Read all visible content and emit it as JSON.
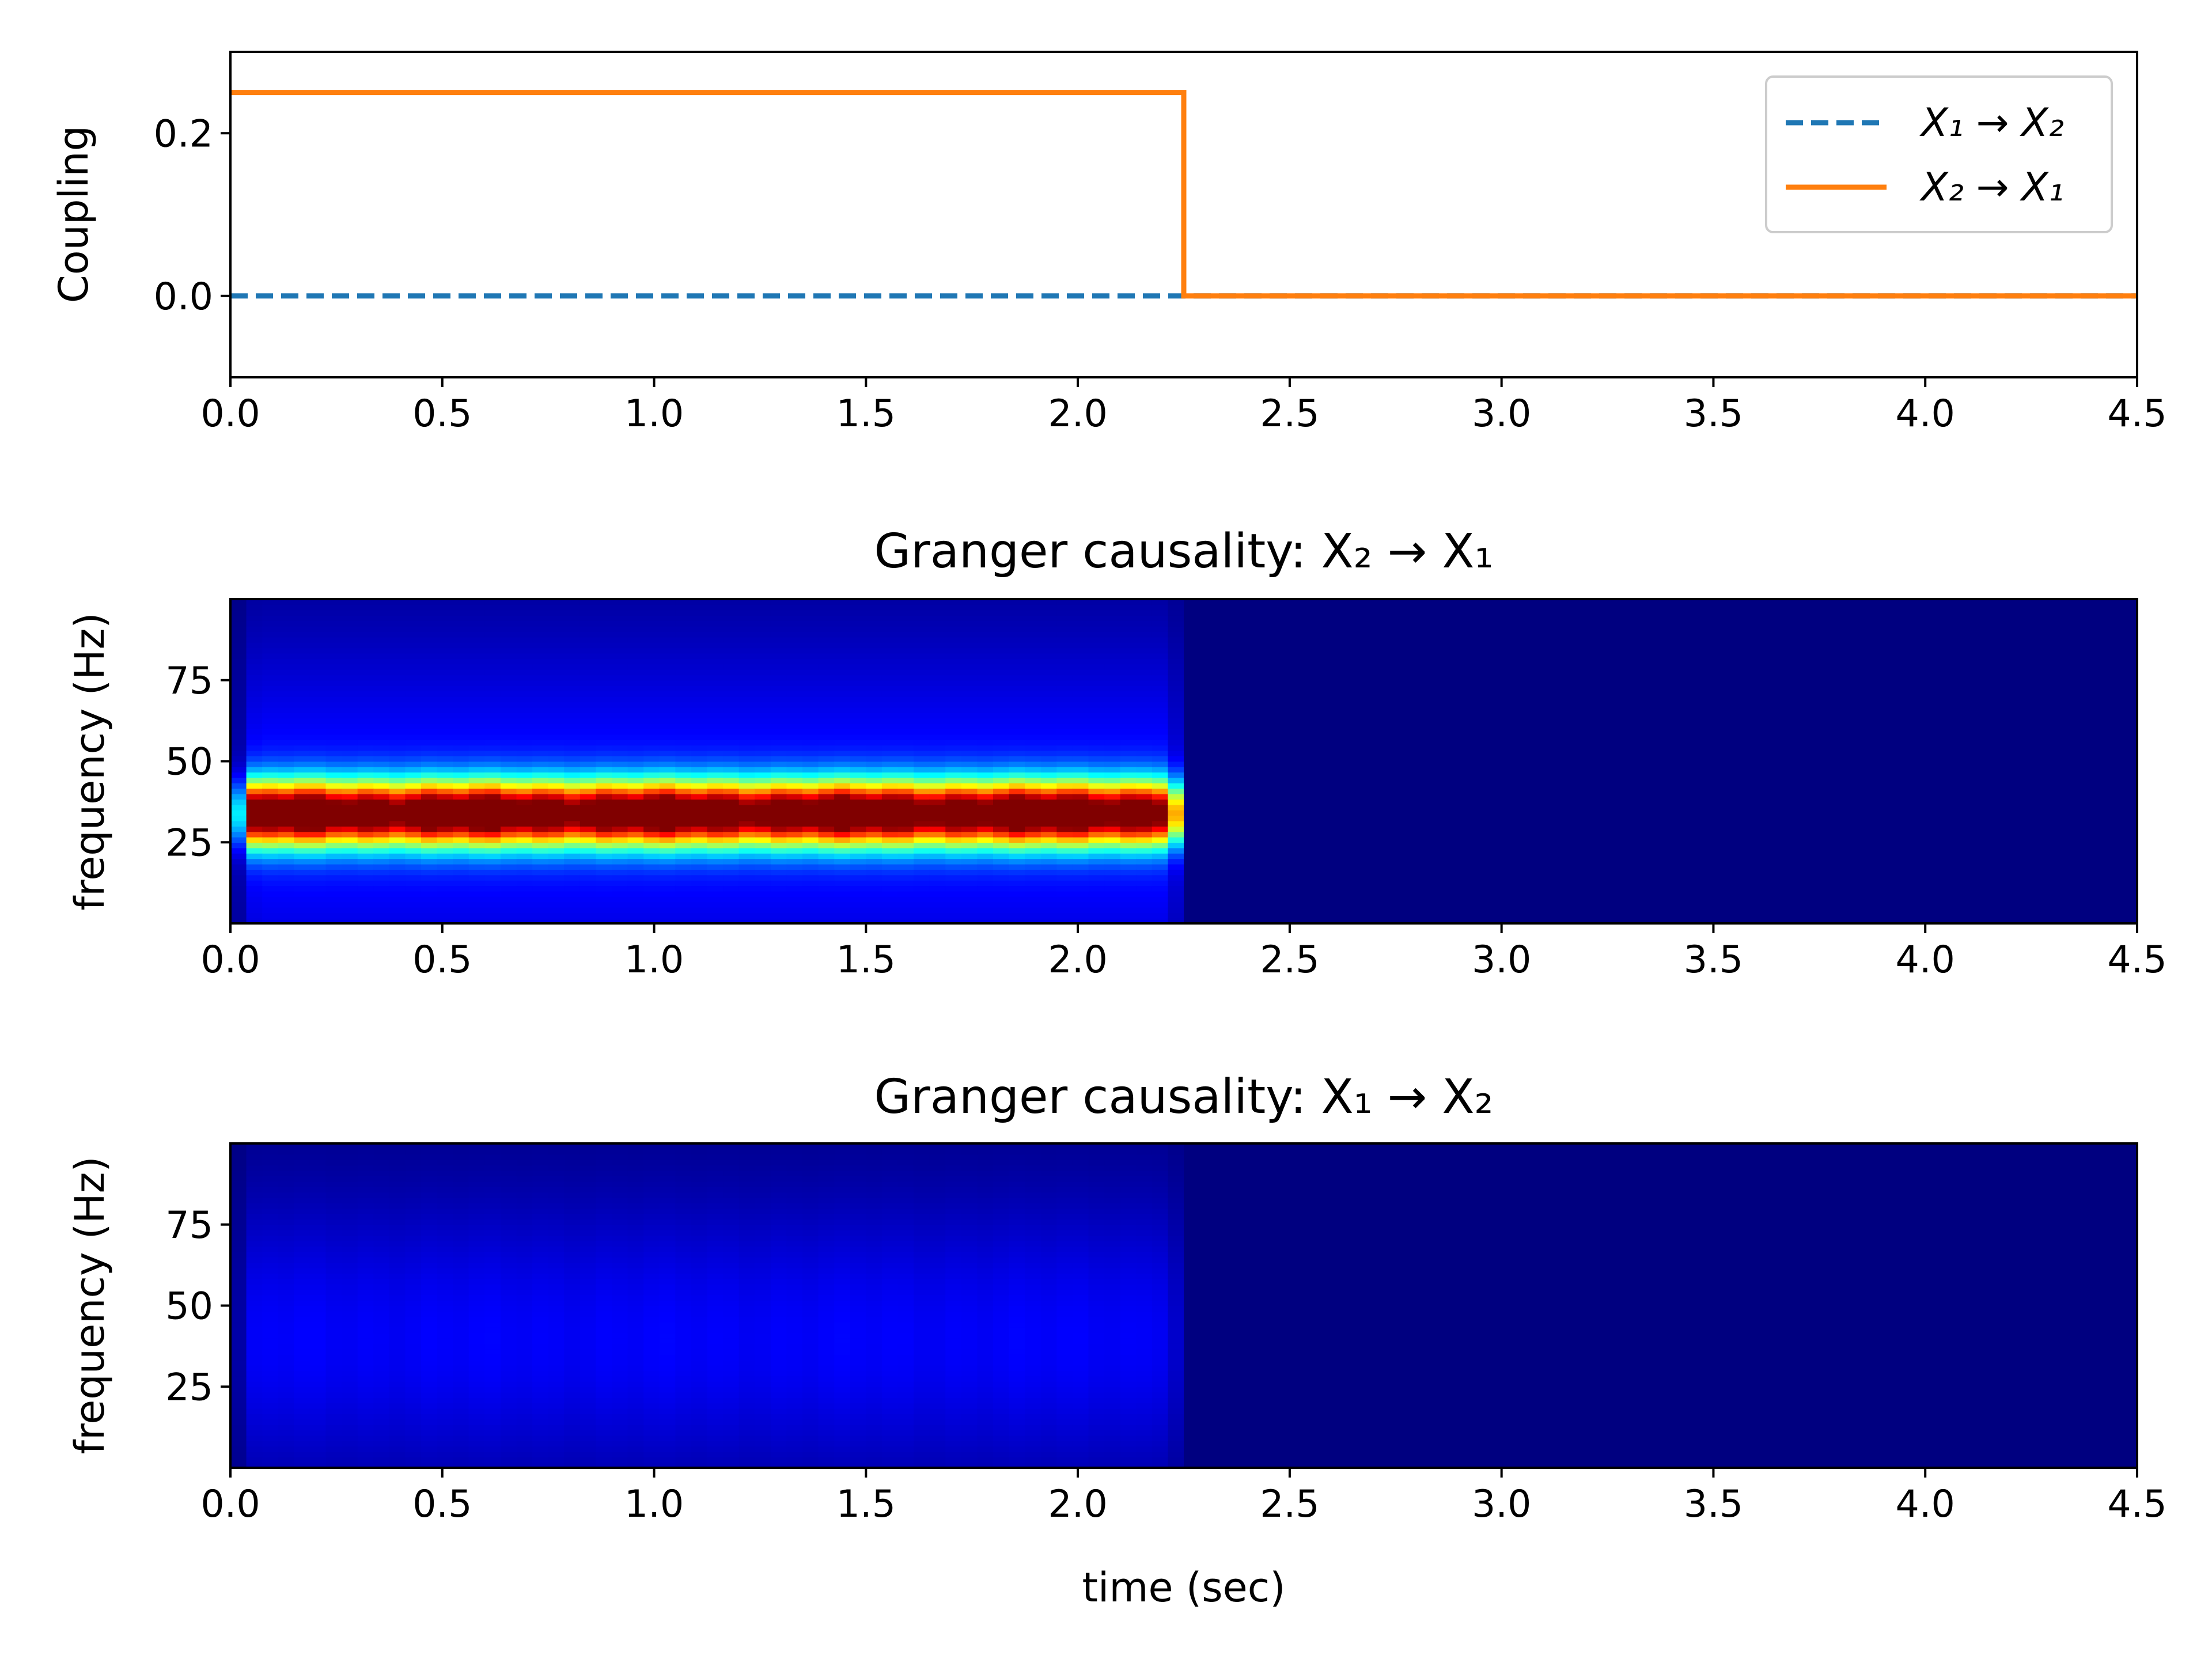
{
  "chart_data": [
    {
      "type": "line",
      "xlabel": "",
      "ylabel": "Coupling",
      "xlim": [
        0.0,
        4.5
      ],
      "ylim": [
        -0.1,
        0.3
      ],
      "xticks": [
        "0.0",
        "0.5",
        "1.0",
        "1.5",
        "2.0",
        "2.5",
        "3.0",
        "3.5",
        "4.0",
        "4.5"
      ],
      "yticks": [
        "0.0",
        "0.2"
      ],
      "grid": false,
      "legend_position": "top-right",
      "series": [
        {
          "name": "X₁ → X₂",
          "style": "dashed",
          "color": "#1f77b4",
          "x": [
            0.0,
            4.5
          ],
          "y": [
            0.0,
            0.0
          ]
        },
        {
          "name": "X₂ → X₁",
          "style": "solid",
          "color": "#ff7f0e",
          "x": [
            0.0,
            2.25,
            2.25,
            4.5
          ],
          "y": [
            0.25,
            0.25,
            0.0,
            0.0
          ]
        }
      ]
    },
    {
      "type": "heatmap",
      "title": "Granger causality: X₂ → X₁",
      "xlabel": "",
      "ylabel": "frequency (Hz)",
      "xlim": [
        0.0,
        4.5
      ],
      "ylim": [
        0,
        100
      ],
      "xticks": [
        "0.0",
        "0.5",
        "1.0",
        "1.5",
        "2.0",
        "2.5",
        "3.0",
        "3.5",
        "4.0",
        "4.5"
      ],
      "yticks": [
        "25",
        "50",
        "75"
      ],
      "colormap": "jet",
      "active_interval": [
        0.0,
        2.25
      ],
      "peak_frequency": 34,
      "peak_bandwidth": 10,
      "peak_intensity": 1.0,
      "background_intensity": 0.15,
      "inactive_intensity": 0.0
    },
    {
      "type": "heatmap",
      "title": "Granger causality: X₁ → X₂",
      "xlabel": "time (sec)",
      "ylabel": "frequency (Hz)",
      "xlim": [
        0.0,
        4.5
      ],
      "ylim": [
        0,
        100
      ],
      "xticks": [
        "0.0",
        "0.5",
        "1.0",
        "1.5",
        "2.0",
        "2.5",
        "3.0",
        "3.5",
        "4.0",
        "4.5"
      ],
      "yticks": [
        "25",
        "50",
        "75"
      ],
      "colormap": "jet",
      "active_interval": [
        0.0,
        2.25
      ],
      "peak_frequency": 40,
      "peak_bandwidth": 40,
      "peak_intensity": 0.08,
      "background_intensity": 0.04,
      "inactive_intensity": 0.0
    }
  ]
}
